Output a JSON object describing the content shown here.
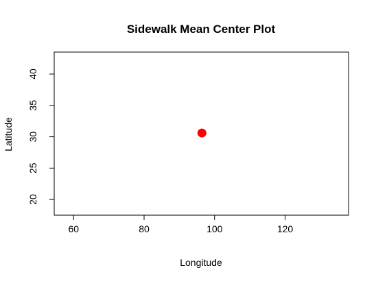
{
  "chart_data": {
    "type": "scatter",
    "title": "Sidewalk Mean Center Plot",
    "xlabel": "Longitude",
    "ylabel": "Latitude",
    "xlim": [
      54.5,
      138
    ],
    "ylim": [
      17.5,
      43.5
    ],
    "x_ticks": [
      60,
      80,
      100,
      120
    ],
    "y_ticks": [
      20,
      25,
      30,
      35,
      40
    ],
    "points": [
      {
        "x": 96.4,
        "y": 30.6,
        "color": "#ff0000"
      }
    ],
    "grid": false,
    "legend": "none"
  }
}
